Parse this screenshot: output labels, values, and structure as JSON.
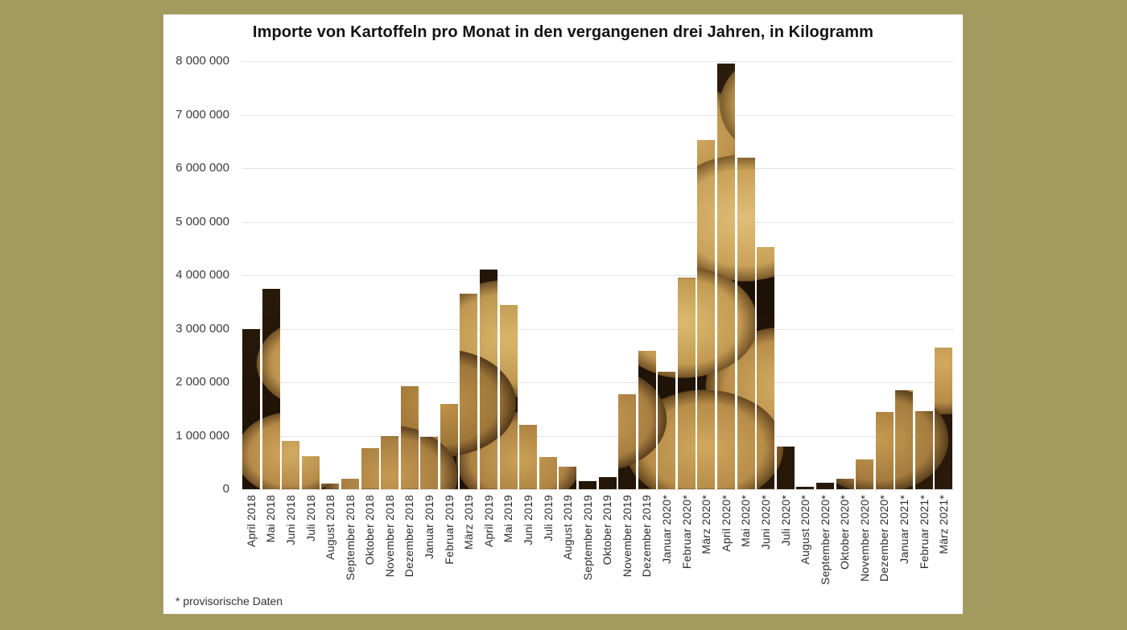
{
  "page": {
    "background_color": "#a39a60",
    "panel_color": "#ffffff",
    "gridline_color": "#e2e2e2"
  },
  "chart_data": {
    "type": "bar",
    "title": "Importe von Kartoffeln pro Monat in den vergangenen drei Jahren, in Kilogramm",
    "footnote": "* provisorische Daten",
    "xlabel": "",
    "ylabel": "",
    "ylim": [
      0,
      8000000
    ],
    "ytick_step": 1000000,
    "grid": "horizontal",
    "legend": "none",
    "bar_fill": "potato-photo-texture",
    "categories": [
      "April 2018",
      "Mai 2018",
      "Juni 2018",
      "Juli 2018",
      "August 2018",
      "September 2018",
      "Oktober 2018",
      "November 2018",
      "Dezember 2018",
      "Januar 2019",
      "Februar 2019",
      "März 2019",
      "April 2019",
      "Mai 2019",
      "Juni 2019",
      "Juli 2019",
      "August 2019",
      "September 2019",
      "Oktober 2019",
      "November 2019",
      "Dezember 2019",
      "Januar 2020*",
      "Februar 2020*",
      "März 2020*",
      "April 2020*",
      "Mai 2020*",
      "Juni 2020*",
      "Juli 2020*",
      "August 2020*",
      "September 2020*",
      "Oktober 2020*",
      "November 2020*",
      "Dezember 2020*",
      "Januar 2021*",
      "Februar 2021*",
      "März 2021*"
    ],
    "values": [
      3000000,
      3750000,
      900000,
      620000,
      100000,
      200000,
      760000,
      1000000,
      1920000,
      980000,
      1600000,
      3650000,
      4100000,
      3450000,
      1200000,
      600000,
      420000,
      150000,
      230000,
      1780000,
      2580000,
      2200000,
      3950000,
      6520000,
      7950000,
      6200000,
      4520000,
      800000,
      50000,
      120000,
      200000,
      560000,
      1450000,
      1850000,
      1460000,
      2650000
    ]
  }
}
